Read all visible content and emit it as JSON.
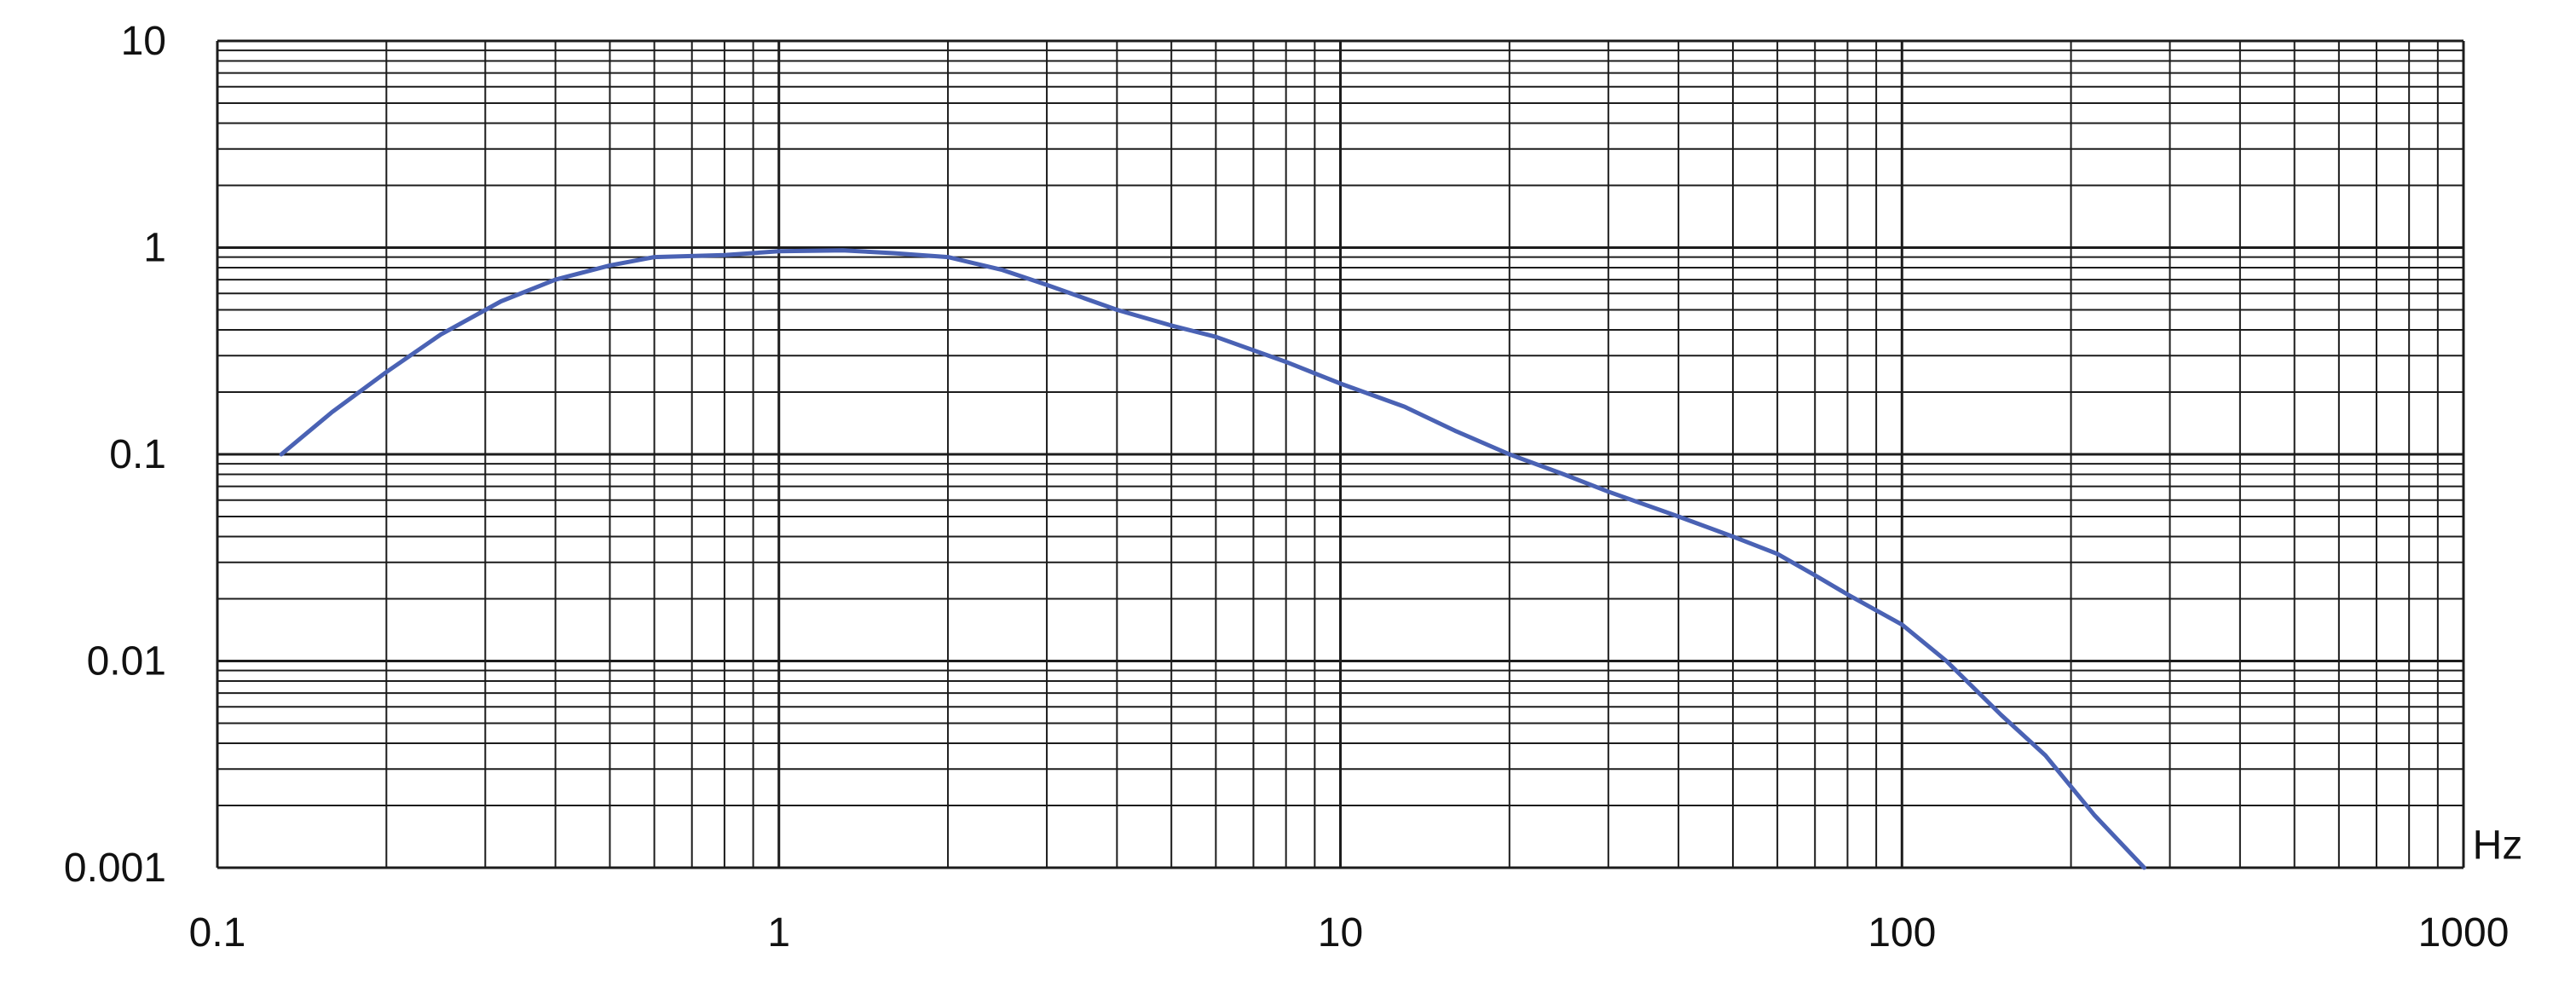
{
  "chart_data": {
    "type": "line",
    "title": "",
    "xlabel": "Hz",
    "ylabel": "",
    "xscale": "log",
    "yscale": "log",
    "xlim": [
      0.1,
      1000
    ],
    "ylim": [
      0.001,
      10
    ],
    "grid": true,
    "x_tick_labels": [
      "0.1",
      "1",
      "10",
      "100",
      "1000"
    ],
    "y_tick_labels": [
      "10",
      "1",
      "0.1",
      "0.01",
      "0.001"
    ],
    "series": [
      {
        "color": "#4a62b4",
        "points": [
          [
            0.13,
            0.1
          ],
          [
            0.16,
            0.16
          ],
          [
            0.2,
            0.25
          ],
          [
            0.25,
            0.38
          ],
          [
            0.32,
            0.55
          ],
          [
            0.4,
            0.7
          ],
          [
            0.5,
            0.82
          ],
          [
            0.6,
            0.9
          ],
          [
            0.8,
            0.92
          ],
          [
            1.0,
            0.96
          ],
          [
            1.3,
            0.97
          ],
          [
            1.6,
            0.94
          ],
          [
            2.0,
            0.9
          ],
          [
            2.5,
            0.78
          ],
          [
            3.0,
            0.66
          ],
          [
            4.0,
            0.5
          ],
          [
            5.0,
            0.42
          ],
          [
            6.0,
            0.37
          ],
          [
            8.0,
            0.28
          ],
          [
            10.0,
            0.22
          ],
          [
            13.0,
            0.17
          ],
          [
            16.0,
            0.13
          ],
          [
            20.0,
            0.1
          ],
          [
            25.0,
            0.08
          ],
          [
            30.0,
            0.066
          ],
          [
            40.0,
            0.05
          ],
          [
            50.0,
            0.04
          ],
          [
            60.0,
            0.033
          ],
          [
            70.0,
            0.026
          ],
          [
            80.0,
            0.021
          ],
          [
            100.0,
            0.015
          ],
          [
            120.0,
            0.01
          ],
          [
            150.0,
            0.0055
          ],
          [
            180.0,
            0.0035
          ],
          [
            220.0,
            0.0018
          ],
          [
            270.0,
            0.001
          ]
        ]
      }
    ]
  }
}
